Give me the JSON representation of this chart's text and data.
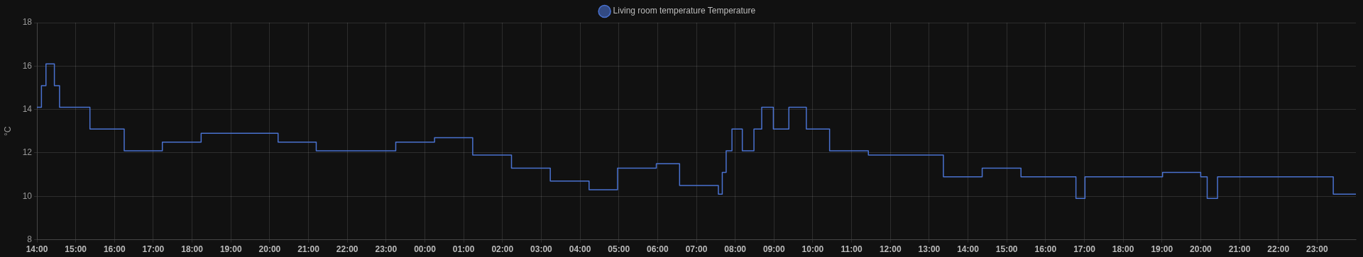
{
  "chart_data": {
    "type": "step",
    "ylabel": "°C",
    "legend": "top",
    "grid": true,
    "xlim": [
      "--01-01T14:00",
      "--01-03T00:00"
    ],
    "ylim": [
      8,
      18
    ],
    "yticks": [
      8,
      10,
      12,
      14,
      16,
      18
    ],
    "xticks": [
      {
        "value": "--01-01T14:00",
        "label": "14:00"
      },
      {
        "value": "--01-01T15:00",
        "label": "15:00"
      },
      {
        "value": "--01-01T16:00",
        "label": "16:00"
      },
      {
        "value": "--01-01T17:00",
        "label": "17:00"
      },
      {
        "value": "--01-01T18:00",
        "label": "18:00"
      },
      {
        "value": "--01-01T19:00",
        "label": "19:00"
      },
      {
        "value": "--01-01T20:00",
        "label": "20:00"
      },
      {
        "value": "--01-01T21:00",
        "label": "21:00"
      },
      {
        "value": "--01-01T22:00",
        "label": "22:00"
      },
      {
        "value": "--01-01T23:00",
        "label": "23:00"
      },
      {
        "value": "--01-02T00:00",
        "label": "00:00"
      },
      {
        "value": "--01-02T01:00",
        "label": "01:00"
      },
      {
        "value": "--01-02T02:00",
        "label": "02:00"
      },
      {
        "value": "--01-02T03:00",
        "label": "03:00"
      },
      {
        "value": "--01-02T04:00",
        "label": "04:00"
      },
      {
        "value": "--01-02T05:00",
        "label": "05:00"
      },
      {
        "value": "--01-02T06:00",
        "label": "06:00"
      },
      {
        "value": "--01-02T07:00",
        "label": "07:00"
      },
      {
        "value": "--01-02T08:00",
        "label": "08:00"
      },
      {
        "value": "--01-02T09:00",
        "label": "09:00"
      },
      {
        "value": "--01-02T10:00",
        "label": "10:00"
      },
      {
        "value": "--01-02T11:00",
        "label": "11:00"
      },
      {
        "value": "--01-02T12:00",
        "label": "12:00"
      },
      {
        "value": "--01-02T13:00",
        "label": "13:00"
      },
      {
        "value": "--01-02T14:00",
        "label": "14:00"
      },
      {
        "value": "--01-02T15:00",
        "label": "15:00"
      },
      {
        "value": "--01-02T16:00",
        "label": "16:00"
      },
      {
        "value": "--01-02T17:00",
        "label": "17:00"
      },
      {
        "value": "--01-02T18:00",
        "label": "18:00"
      },
      {
        "value": "--01-02T19:00",
        "label": "19:00"
      },
      {
        "value": "--01-02T20:00",
        "label": "20:00"
      },
      {
        "value": "--01-02T21:00",
        "label": "21:00"
      },
      {
        "value": "--01-02T22:00",
        "label": "22:00"
      },
      {
        "value": "--01-02T23:00",
        "label": "23:00"
      }
    ],
    "series": [
      {
        "name": "Living room temperature Temperature",
        "color": "#4a72d0",
        "x": [
          "--01-01T14:00",
          "--01-01T14:07",
          "--01-01T14:14",
          "--01-01T14:27",
          "--01-01T14:35",
          "--01-01T15:22",
          "--01-01T16:15",
          "--01-01T17:14",
          "--01-01T18:14",
          "--01-01T20:13",
          "--01-01T21:12",
          "--01-01T23:15",
          "--01-02T00:15",
          "--01-02T01:14",
          "--01-02T02:14",
          "--01-02T03:14",
          "--01-02T04:14",
          "--01-02T04:58",
          "--01-02T05:58",
          "--01-02T06:34",
          "--01-02T07:34",
          "--01-02T07:40",
          "--01-02T07:46",
          "--01-02T07:55",
          "--01-02T08:11",
          "--01-02T08:29",
          "--01-02T08:41",
          "--01-02T08:59",
          "--01-02T09:23",
          "--01-02T09:50",
          "--01-02T10:26",
          "--01-02T11:26",
          "--01-02T13:22",
          "--01-02T14:22",
          "--01-02T15:22",
          "--01-02T16:47",
          "--01-02T17:01",
          "--01-02T19:01",
          "--01-02T20:00",
          "--01-02T20:10",
          "--01-02T20:26",
          "--01-02T23:25",
          "--01-03T00:00"
        ],
        "values": [
          14.1,
          15.1,
          16.1,
          15.1,
          14.1,
          13.1,
          12.1,
          12.5,
          12.9,
          12.5,
          12.1,
          12.5,
          12.7,
          11.9,
          11.3,
          10.7,
          10.3,
          11.3,
          11.5,
          10.5,
          10.1,
          11.1,
          12.1,
          13.1,
          12.1,
          13.1,
          14.1,
          13.1,
          14.1,
          13.1,
          12.1,
          11.9,
          10.9,
          11.3,
          10.9,
          9.9,
          10.9,
          11.1,
          10.9,
          9.9,
          10.9,
          10.1,
          10.1
        ]
      }
    ]
  }
}
